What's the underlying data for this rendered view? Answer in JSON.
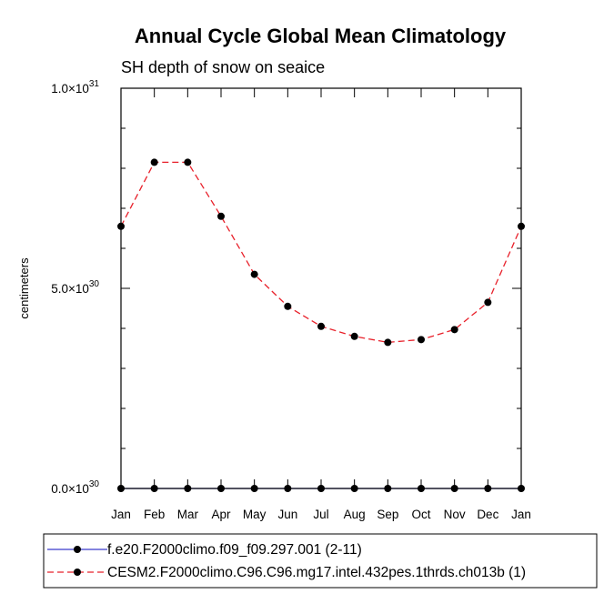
{
  "chart_data": {
    "type": "line",
    "title": "Annual Cycle Global Mean Climatology",
    "subtitle": "SH depth of snow on seaice",
    "xlabel": "",
    "ylabel": "centimeters",
    "categories": [
      "Jan",
      "Feb",
      "Mar",
      "Apr",
      "May",
      "Jun",
      "Jul",
      "Aug",
      "Sep",
      "Oct",
      "Nov",
      "Dec",
      "Jan"
    ],
    "ylim": [
      0,
      1e+31
    ],
    "y_ticks": [
      {
        "value": 0,
        "mantissa": "0.0",
        "exponent": "30"
      },
      {
        "value": 5e+30,
        "mantissa": "5.0",
        "exponent": "30"
      },
      {
        "value": 1e+31,
        "mantissa": "1.0",
        "exponent": "31"
      }
    ],
    "y_minor_step": 1e+30,
    "series": [
      {
        "name": "f.e20.F2000climo.f09_f09.297.001 (2-11)",
        "color": "#3b3bcc",
        "dash": "solid",
        "values": [
          0,
          0,
          0,
          0,
          0,
          0,
          0,
          0,
          0,
          0,
          0,
          0,
          0
        ]
      },
      {
        "name": "CESM2.F2000climo.C96.C96.mg17.intel.432pes.1thrds.ch013b (1)",
        "color": "#e8202a",
        "dash": "dashed",
        "values": [
          6.55e+30,
          8.15e+30,
          8.15e+30,
          6.8e+30,
          5.35e+30,
          4.55e+30,
          4.05e+30,
          3.8e+30,
          3.65e+30,
          3.72e+30,
          3.97e+30,
          4.65e+30,
          6.55e+30
        ]
      }
    ],
    "legend_position": "bottom"
  }
}
